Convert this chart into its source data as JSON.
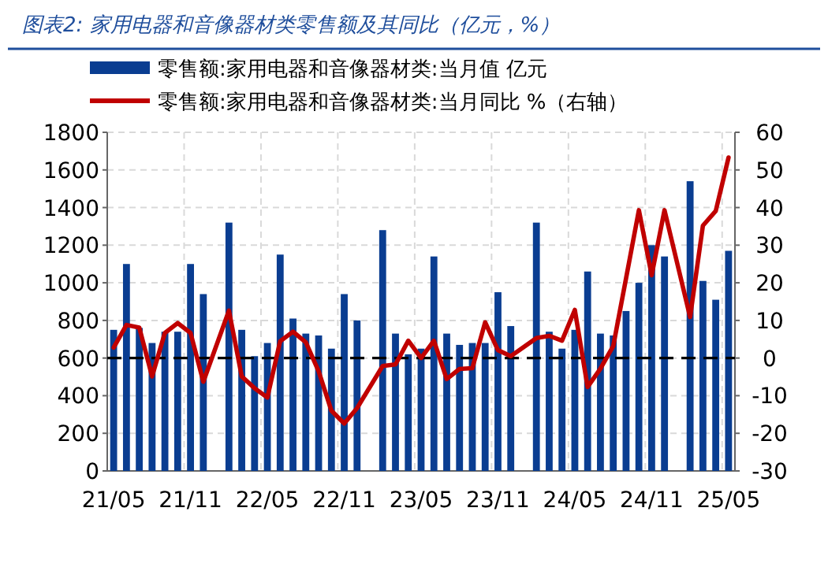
{
  "chart_data": {
    "type": "bar",
    "title": "图表2:  家用电器和音像器材类零售额及其同比（亿元，%）",
    "categories": [
      "21/05",
      null,
      null,
      null,
      null,
      null,
      "21/11",
      null,
      null,
      null,
      null,
      null,
      "22/05",
      null,
      null,
      null,
      null,
      null,
      "22/11",
      null,
      null,
      null,
      null,
      null,
      "23/05",
      null,
      null,
      null,
      null,
      null,
      "23/11",
      null,
      null,
      null,
      null,
      null,
      "24/05",
      null,
      null,
      null,
      null,
      null,
      "24/11",
      null,
      null,
      null,
      null,
      null,
      "25/05"
    ],
    "series": [
      {
        "name": "零售额:家用电器和音像器材类:当月值 亿元",
        "color": "#0a3d91",
        "values": [
          750,
          1100,
          760,
          680,
          740,
          740,
          1100,
          940,
          null,
          1320,
          750,
          610,
          680,
          1150,
          810,
          730,
          720,
          650,
          940,
          800,
          null,
          1280,
          730,
          620,
          650,
          1140,
          730,
          670,
          680,
          680,
          950,
          770,
          null,
          1320,
          740,
          650,
          750,
          1060,
          730,
          720,
          850,
          1000,
          1200,
          1140,
          null,
          1540,
          1010,
          910,
          1170
        ]
      },
      {
        "name": "零售额:家用电器和音像器材类:当月同比 %（右轴）",
        "type": "line",
        "axis": "y2",
        "color": "#c00000",
        "values": [
          2.8,
          8.8,
          8.1,
          -4.9,
          6.7,
          9.3,
          6.7,
          -6.3,
          null,
          12.6,
          -4.9,
          -8,
          -10.5,
          4.5,
          7,
          4.2,
          -3.5,
          -14,
          -17.4,
          -13.3,
          null,
          -2.1,
          -1.7,
          4.6,
          0,
          4.6,
          -5.6,
          -2.9,
          -2.7,
          9.5,
          2.1,
          0.5,
          null,
          5.3,
          5.9,
          4.6,
          12.8,
          -7.7,
          -2.8,
          3.2,
          21.2,
          39.3,
          22,
          39.3,
          null,
          10.9,
          35.2,
          39.1,
          53.3
        ]
      }
    ],
    "ylim": [
      0,
      1800
    ],
    "yticks": [
      0,
      200,
      400,
      600,
      800,
      1000,
      1200,
      1400,
      1600,
      1800
    ],
    "y2lim": [
      -30,
      60
    ],
    "y2ticks": [
      -30,
      -20,
      -10,
      0,
      10,
      20,
      30,
      40,
      50,
      60
    ],
    "ref_lines": [
      {
        "axis": "y2",
        "value": 0,
        "color": "#000000",
        "line_style": "dashed"
      }
    ],
    "grid": true,
    "legend": "top"
  }
}
